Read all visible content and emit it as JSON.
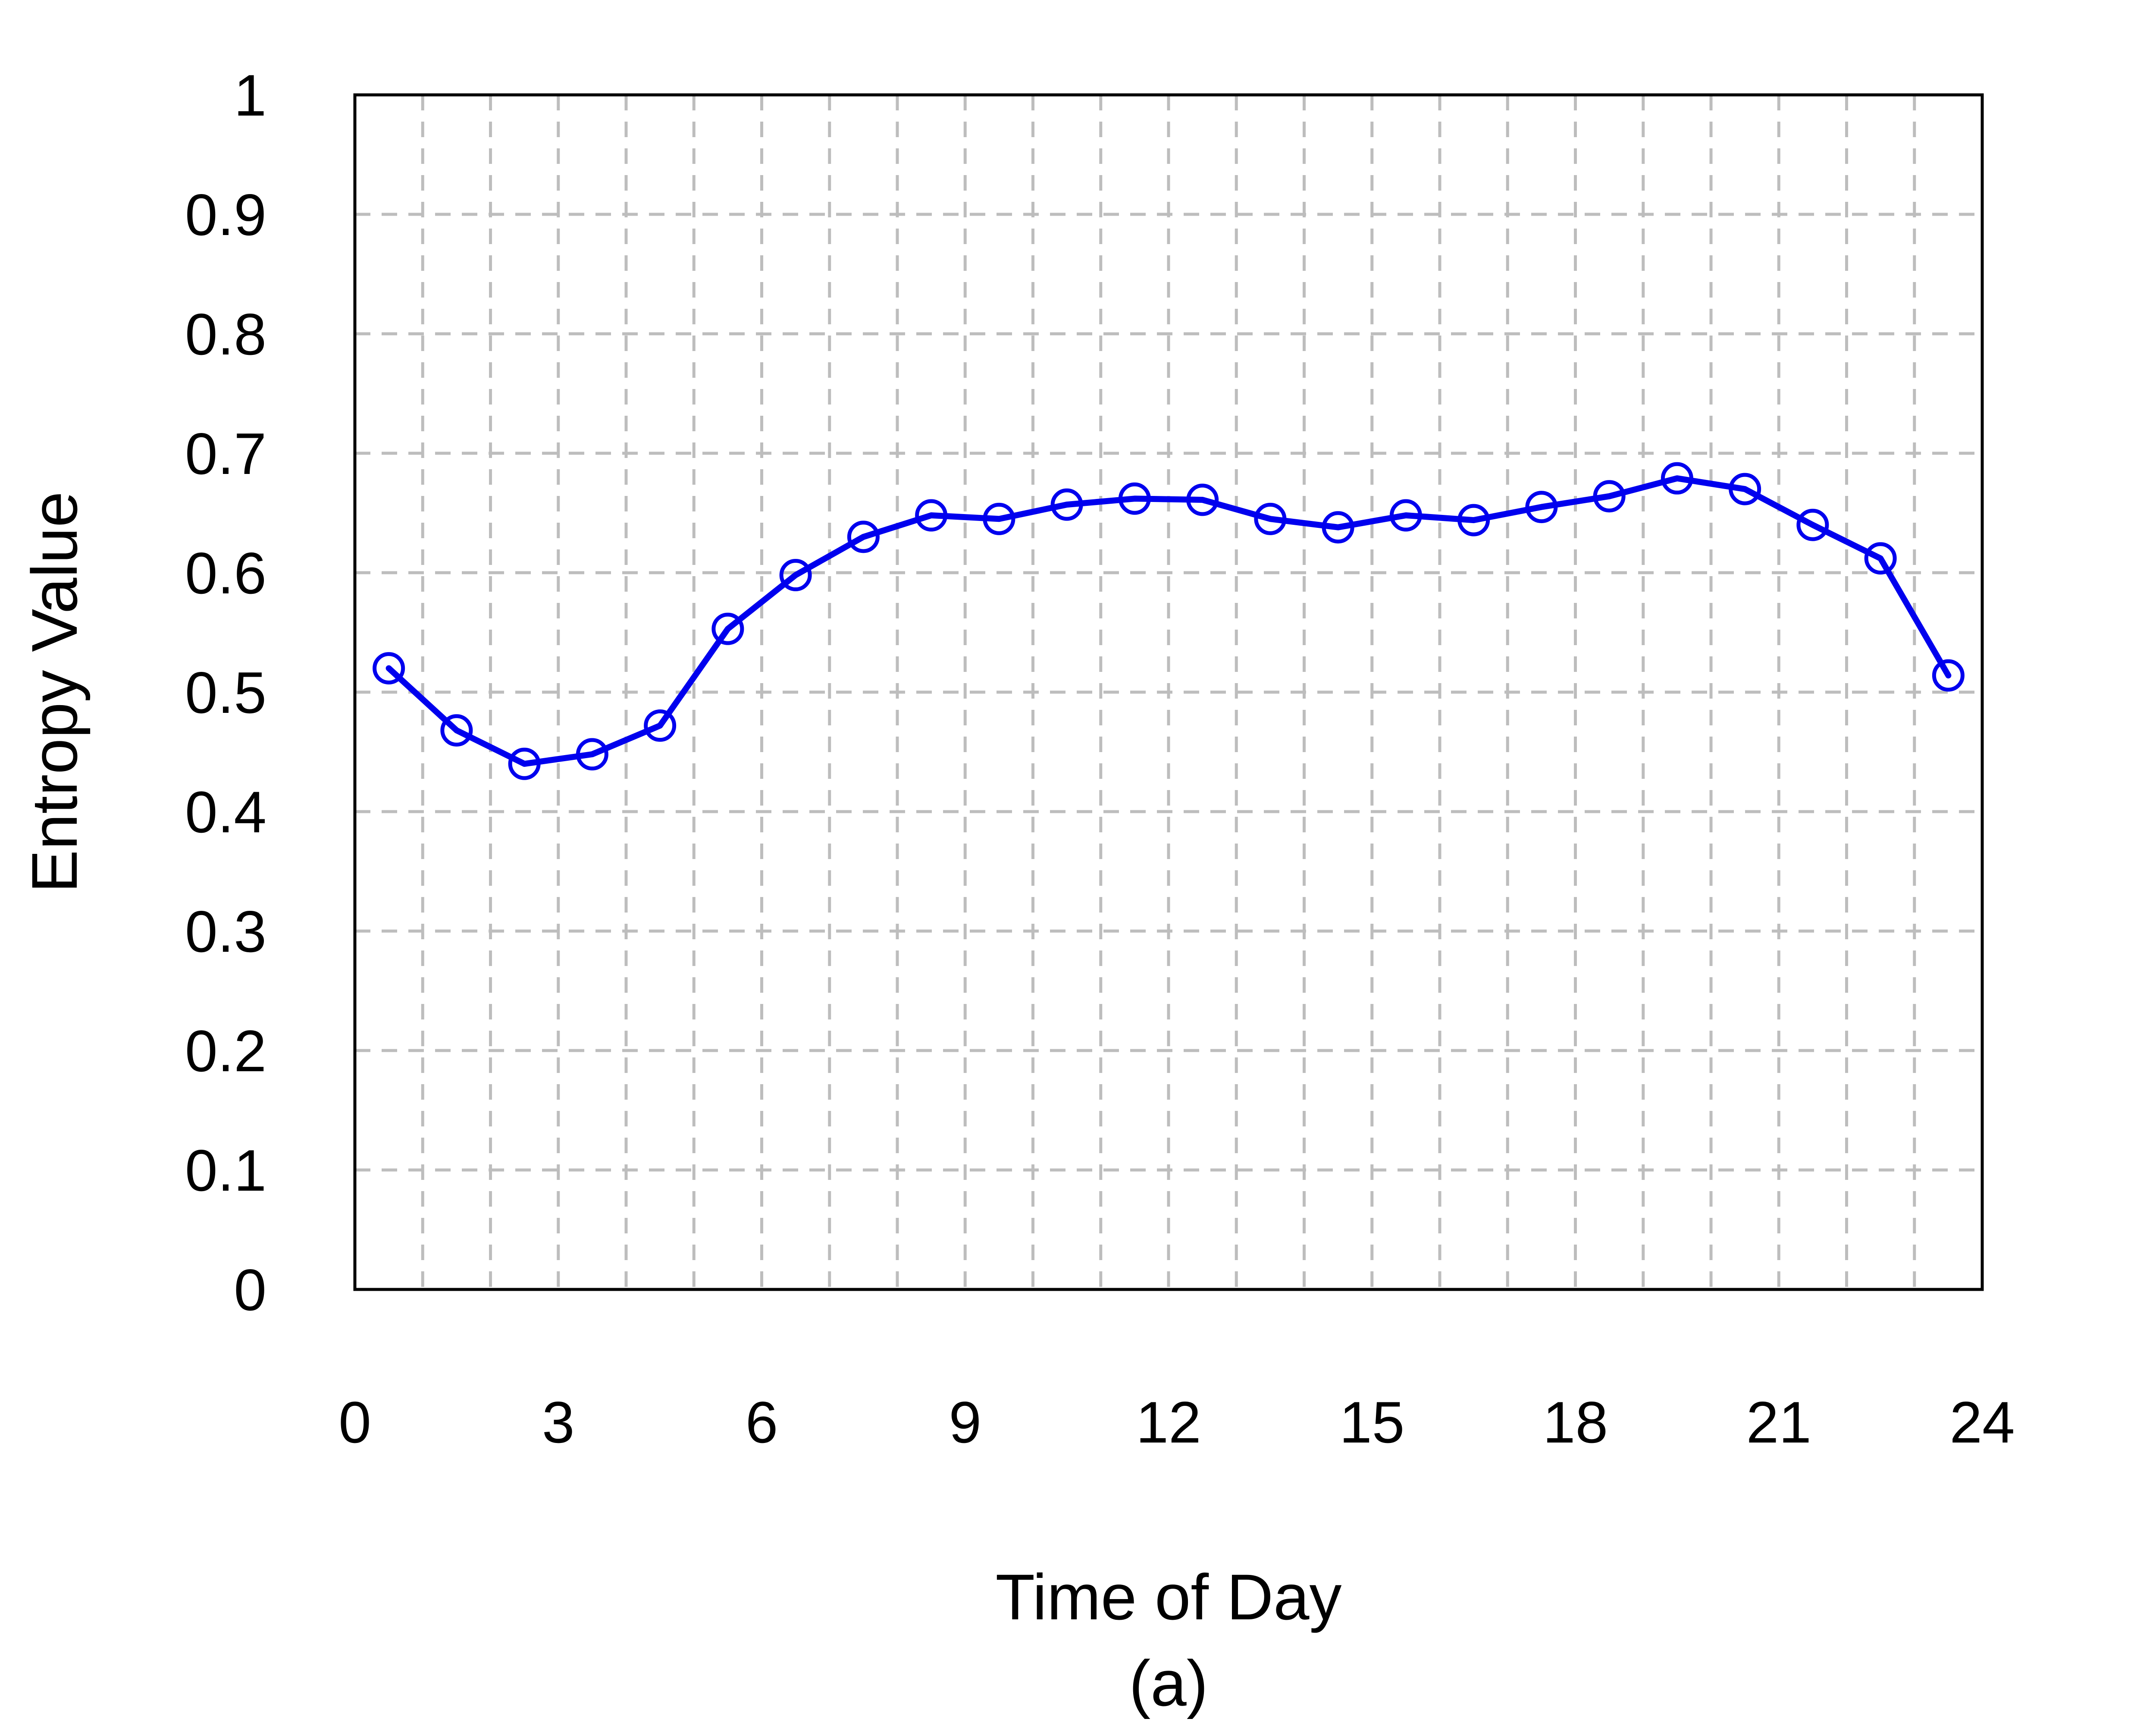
{
  "chart_data": {
    "type": "line",
    "title": "",
    "xlabel": "Time of Day",
    "ylabel": "Entropy Value",
    "caption": "(a)",
    "xlim": [
      0,
      24
    ],
    "ylim": [
      0,
      1
    ],
    "x_ticks": [
      "0",
      "3",
      "6",
      "9",
      "12",
      "15",
      "18",
      "21",
      "24"
    ],
    "y_ticks": [
      "0",
      "0.1",
      "0.2",
      "0.3",
      "0.4",
      "0.5",
      "0.6",
      "0.7",
      "0.8",
      "0.9",
      "1"
    ],
    "grid": true,
    "grid_style": "dashed",
    "grid_x_step": 1,
    "grid_y_step": 0.1,
    "legend": "none",
    "series": [
      {
        "color": "#0000ee",
        "marker": "open-circle",
        "x": [
          0.5,
          1.5,
          2.5,
          3.5,
          4.5,
          5.5,
          6.5,
          7.5,
          8.5,
          9.5,
          10.5,
          11.5,
          12.5,
          13.5,
          14.5,
          15.5,
          16.5,
          17.5,
          18.5,
          19.5,
          20.5,
          21.5,
          22.5,
          23.5
        ],
        "values": [
          0.52,
          0.468,
          0.44,
          0.448,
          0.472,
          0.553,
          0.598,
          0.63,
          0.648,
          0.645,
          0.657,
          0.662,
          0.661,
          0.645,
          0.638,
          0.648,
          0.644,
          0.655,
          0.664,
          0.679,
          0.67,
          0.64,
          0.612,
          0.514
        ]
      }
    ]
  }
}
